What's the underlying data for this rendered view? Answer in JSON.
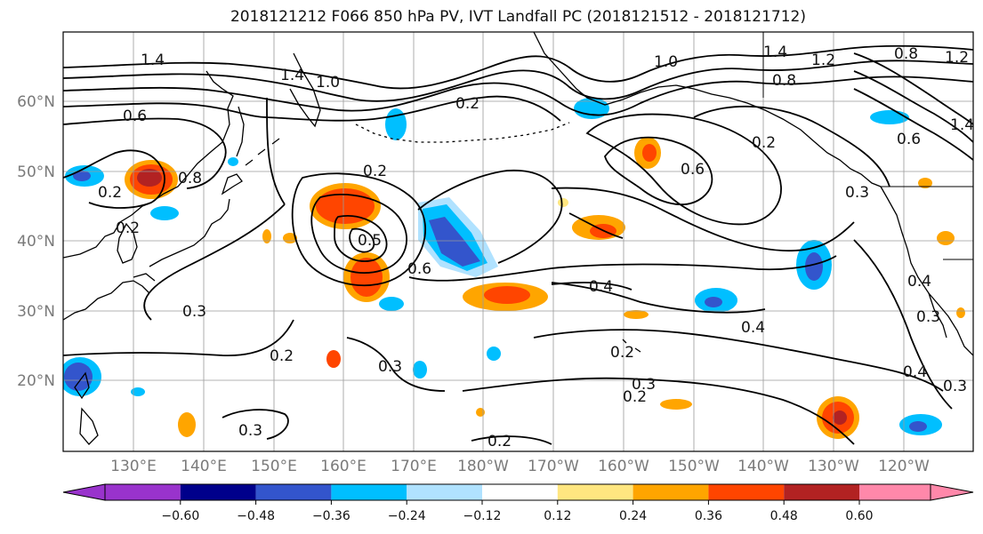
{
  "title": "2018121212 F066 850 hPa PV, IVT Landfall PC (2018121512 - 2018121712)",
  "lat_labels": [
    "60°N",
    "50°N",
    "40°N",
    "30°N",
    "20°N"
  ],
  "lon_labels": [
    "130°E",
    "140°E",
    "150°E",
    "160°E",
    "170°E",
    "180°W",
    "170°W",
    "160°W",
    "150°W",
    "140°W",
    "130°W",
    "120°W"
  ],
  "colorbar": {
    "ticks": [
      "−0.60",
      "−0.48",
      "−0.36",
      "−0.24",
      "−0.12",
      "0.12",
      "0.24",
      "0.36",
      "0.48",
      "0.60"
    ],
    "colors": [
      "#9933cc",
      "#00008b",
      "#3355cc",
      "#00bfff",
      "#b0e2ff",
      "#ffffff",
      "#ffe680",
      "#ffa500",
      "#ff4500",
      "#b22222",
      "#ff88aa"
    ]
  },
  "contour_labels": [
    "1.4",
    "1.0",
    "1.4",
    "1.2",
    "1.0",
    "0.8",
    "1.4",
    "1.2",
    "0.8",
    "0.6",
    "1.4",
    "0.6",
    "0.2",
    "0.2",
    "0.5",
    "0.2",
    "0.4",
    "0.3",
    "0.6",
    "0.4",
    "0.3",
    "0.2",
    "0.2",
    "0.3",
    "0.4",
    "0.2",
    "0.4",
    "0.3",
    "0.2",
    "0.3",
    "0.2",
    "0.3",
    "0.6",
    "0.8",
    "0.2",
    "0.3"
  ],
  "colors": {
    "line": "#000000",
    "grid": "#9a9a9a"
  }
}
